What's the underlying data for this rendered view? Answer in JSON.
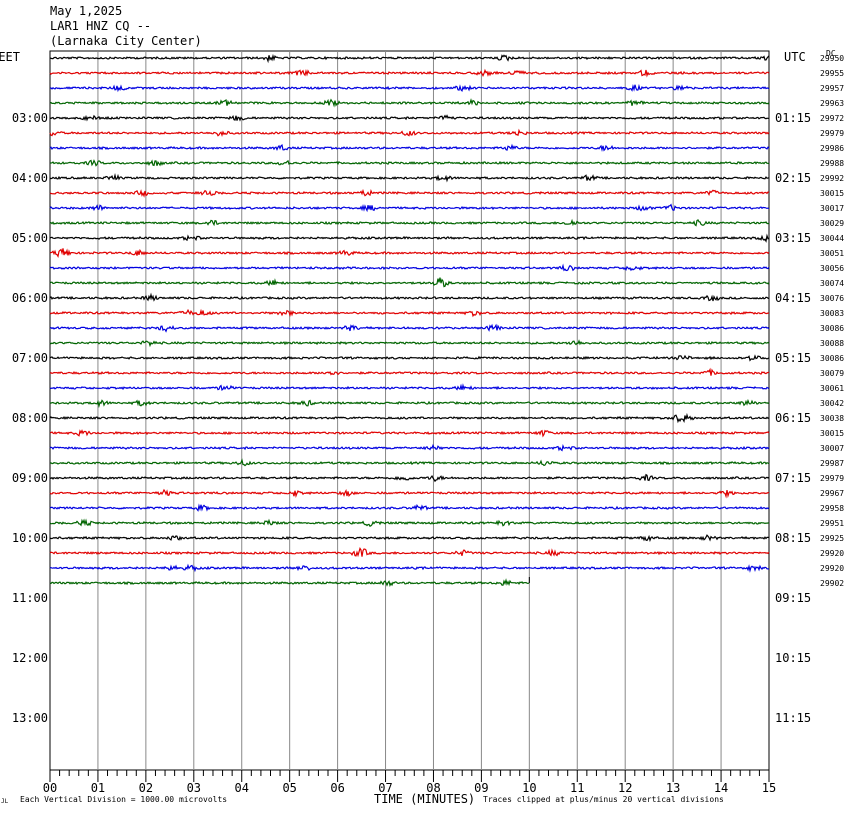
{
  "header": {
    "date": "May 1,2025",
    "station": "LAR1 HNZ CQ --",
    "location": "(Larnaka City Center)"
  },
  "chart_data": {
    "type": "line",
    "title": "May 1,2025",
    "left_axis_label": "EET",
    "right_axis_label": "UTC",
    "dc_label": "DC",
    "xlabel": "TIME (MINUTES)",
    "xlim": [
      0,
      15
    ],
    "x_tick_labels": [
      "00",
      "01",
      "02",
      "03",
      "04",
      "05",
      "06",
      "07",
      "08",
      "09",
      "10",
      "11",
      "12",
      "13",
      "14",
      "15"
    ],
    "left_time_labels": [
      "03:00",
      "04:00",
      "05:00",
      "06:00",
      "07:00",
      "08:00",
      "09:00",
      "10:00",
      "11:00",
      "12:00",
      "13:00"
    ],
    "right_time_labels": [
      "01:15",
      "02:15",
      "03:15",
      "04:15",
      "05:15",
      "06:15",
      "07:15",
      "08:15",
      "09:15",
      "10:15",
      "11:15"
    ],
    "rows_per_hour": 4,
    "total_rows": 48,
    "trace_colors": [
      "#000000",
      "#e00000",
      "#0000e0",
      "#006400"
    ],
    "traces": [
      {
        "dc": "29950",
        "end_min": 15
      },
      {
        "dc": "29955",
        "end_min": 15
      },
      {
        "dc": "29957",
        "end_min": 15
      },
      {
        "dc": "29963",
        "end_min": 15
      },
      {
        "dc": "29972",
        "end_min": 15
      },
      {
        "dc": "29979",
        "end_min": 15
      },
      {
        "dc": "29986",
        "end_min": 15
      },
      {
        "dc": "29988",
        "end_min": 15
      },
      {
        "dc": "29992",
        "end_min": 15
      },
      {
        "dc": "30015",
        "end_min": 15
      },
      {
        "dc": "30017",
        "end_min": 15
      },
      {
        "dc": "30029",
        "end_min": 15
      },
      {
        "dc": "30044",
        "end_min": 15
      },
      {
        "dc": "30051",
        "end_min": 15
      },
      {
        "dc": "30056",
        "end_min": 15
      },
      {
        "dc": "30074",
        "end_min": 15
      },
      {
        "dc": "30076",
        "end_min": 15
      },
      {
        "dc": "30083",
        "end_min": 15
      },
      {
        "dc": "30086",
        "end_min": 15
      },
      {
        "dc": "30088",
        "end_min": 15
      },
      {
        "dc": "30086",
        "end_min": 15
      },
      {
        "dc": "30079",
        "end_min": 15
      },
      {
        "dc": "30061",
        "end_min": 15
      },
      {
        "dc": "30042",
        "end_min": 15
      },
      {
        "dc": "30038",
        "end_min": 15
      },
      {
        "dc": "30015",
        "end_min": 15
      },
      {
        "dc": "30007",
        "end_min": 15
      },
      {
        "dc": "29987",
        "end_min": 15
      },
      {
        "dc": "29979",
        "end_min": 15
      },
      {
        "dc": "29967",
        "end_min": 15
      },
      {
        "dc": "29958",
        "end_min": 15
      },
      {
        "dc": "29951",
        "end_min": 15
      },
      {
        "dc": "29925",
        "end_min": 15
      },
      {
        "dc": "29920",
        "end_min": 15
      },
      {
        "dc": "29920",
        "end_min": 15
      },
      {
        "dc": "29902",
        "end_min": 10
      }
    ],
    "footer_left": "Each Vertical Division = 1000.00 microvolts",
    "footer_right": "Traces clipped at plus/minus 20 vertical divisions"
  }
}
